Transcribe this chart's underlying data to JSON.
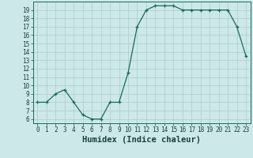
{
  "x": [
    0,
    1,
    2,
    3,
    4,
    5,
    6,
    7,
    8,
    9,
    10,
    11,
    12,
    13,
    14,
    15,
    16,
    17,
    18,
    19,
    20,
    21,
    22,
    23
  ],
  "y": [
    8,
    8,
    9,
    9.5,
    8,
    6.5,
    6,
    6,
    8,
    8,
    11.5,
    17,
    19,
    19.5,
    19.5,
    19.5,
    19,
    19,
    19,
    19,
    19,
    19,
    17,
    13.5
  ],
  "line_color": "#1a6b5a",
  "bg_color": "#cce8e8",
  "xlabel": "Humidex (Indice chaleur)",
  "ylim": [
    5.5,
    20.0
  ],
  "xlim": [
    -0.5,
    23.5
  ],
  "yticks": [
    6,
    7,
    8,
    9,
    10,
    11,
    12,
    13,
    14,
    15,
    16,
    17,
    18,
    19
  ],
  "xticks": [
    0,
    1,
    2,
    3,
    4,
    5,
    6,
    7,
    8,
    9,
    10,
    11,
    12,
    13,
    14,
    15,
    16,
    17,
    18,
    19,
    20,
    21,
    22,
    23
  ],
  "grid_color": "#aacccc",
  "tick_fontsize": 5.5,
  "xlabel_fontsize": 7.5
}
